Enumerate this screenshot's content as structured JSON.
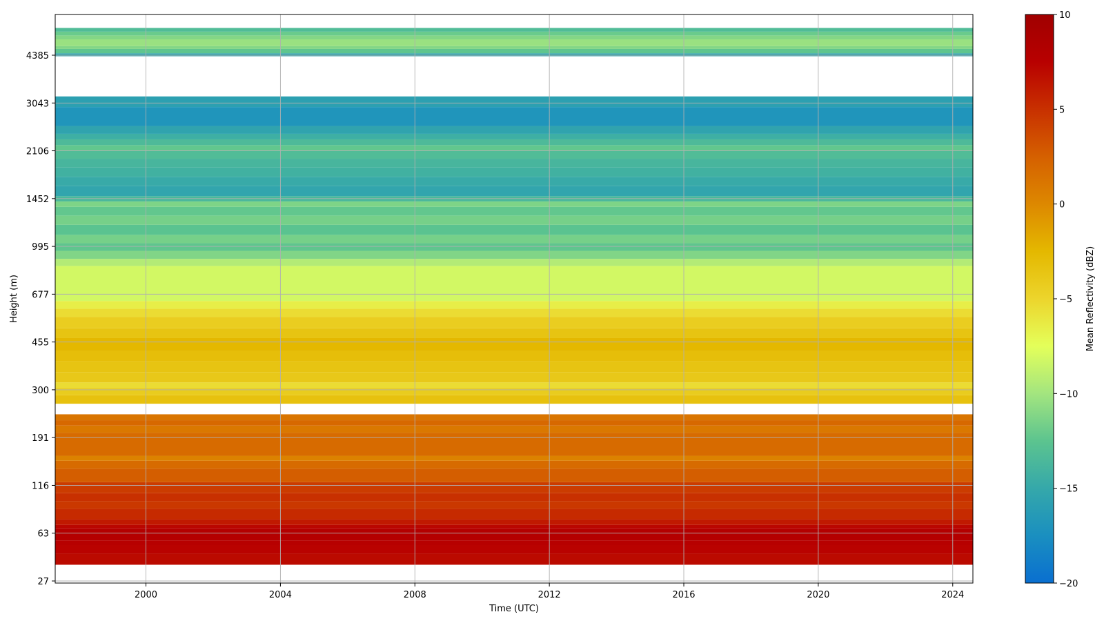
{
  "chart_data": {
    "type": "heatmap",
    "title": "",
    "xlabel": "Time (UTC)",
    "ylabel": "Height (m)",
    "x_range": [
      1997.3,
      2024.6
    ],
    "x_ticks": [
      "2000",
      "2004",
      "2008",
      "2012",
      "2016",
      "2020",
      "2024"
    ],
    "y_ticks": [
      "27",
      "63",
      "116",
      "191",
      "300",
      "455",
      "677",
      "995",
      "1452",
      "2106",
      "3043",
      "4385"
    ],
    "grid": true,
    "colorbar": {
      "label": "Mean Reflectivity (dBZ)",
      "range": [
        -20,
        10
      ],
      "ticks": [
        "10",
        "5",
        "0",
        "−5",
        "−10",
        "−15",
        "−20"
      ],
      "stops": [
        {
          "value": -20,
          "color": "#0a6fd0"
        },
        {
          "value": -17.5,
          "color": "#1a8fc0"
        },
        {
          "value": -15,
          "color": "#35a8aa"
        },
        {
          "value": -12.5,
          "color": "#5cc48f"
        },
        {
          "value": -10,
          "color": "#a3e57f"
        },
        {
          "value": -7.5,
          "color": "#e4ff5a"
        },
        {
          "value": -5,
          "color": "#ecd52c"
        },
        {
          "value": -2.5,
          "color": "#e4b800"
        },
        {
          "value": 0,
          "color": "#dd8800"
        },
        {
          "value": 2.5,
          "color": "#d56000"
        },
        {
          "value": 5,
          "color": "#c83000"
        },
        {
          "value": 7.5,
          "color": "#b80000"
        },
        {
          "value": 10,
          "color": "#a00000"
        }
      ]
    },
    "rows": [
      {
        "height_range": [
          36,
          44
        ],
        "dbz": 7.0
      },
      {
        "height_range": [
          44,
          51
        ],
        "dbz": 7.4
      },
      {
        "height_range": [
          51,
          55
        ],
        "dbz": 7.6
      },
      {
        "height_range": [
          55,
          67
        ],
        "dbz": 7.9
      },
      {
        "height_range": [
          67,
          70
        ],
        "dbz": 7.2
      },
      {
        "height_range": [
          70,
          75
        ],
        "dbz": 6.2
      },
      {
        "height_range": [
          75,
          86
        ],
        "dbz": 5.3
      },
      {
        "height_range": [
          86,
          95
        ],
        "dbz": 4.6
      },
      {
        "height_range": [
          95,
          105
        ],
        "dbz": 5.0
      },
      {
        "height_range": [
          105,
          120
        ],
        "dbz": 4.4
      },
      {
        "height_range": [
          120,
          138
        ],
        "dbz": 2.6
      },
      {
        "height_range": [
          138,
          150
        ],
        "dbz": 1.8
      },
      {
        "height_range": [
          150,
          158
        ],
        "dbz": 0.4
      },
      {
        "height_range": [
          158,
          200
        ],
        "dbz": 1.8
      },
      {
        "height_range": [
          200,
          214
        ],
        "dbz": 1.0
      },
      {
        "height_range": [
          214,
          225
        ],
        "dbz": 2.0
      },
      {
        "height_range": [
          225,
          238
        ],
        "dbz": 1.2
      },
      {
        "height_range": [
          263,
          285
        ],
        "dbz": -3.3
      },
      {
        "height_range": [
          285,
          305
        ],
        "dbz": -4.2
      },
      {
        "height_range": [
          305,
          320
        ],
        "dbz": -5.4
      },
      {
        "height_range": [
          320,
          350
        ],
        "dbz": -3.9
      },
      {
        "height_range": [
          350,
          385
        ],
        "dbz": -3.5
      },
      {
        "height_range": [
          385,
          420
        ],
        "dbz": -3.0
      },
      {
        "height_range": [
          420,
          470
        ],
        "dbz": -2.5
      },
      {
        "height_range": [
          470,
          510
        ],
        "dbz": -3.5
      },
      {
        "height_range": [
          510,
          560
        ],
        "dbz": -4.3
      },
      {
        "height_range": [
          560,
          600
        ],
        "dbz": -5.4
      },
      {
        "height_range": [
          600,
          640
        ],
        "dbz": -6.5
      },
      {
        "height_range": [
          640,
          850
        ],
        "dbz": -8.2
      },
      {
        "height_range": [
          850,
          900
        ],
        "dbz": -9.4
      },
      {
        "height_range": [
          900,
          960
        ],
        "dbz": -11.2
      },
      {
        "height_range": [
          960,
          1020
        ],
        "dbz": -12.4
      },
      {
        "height_range": [
          1020,
          1090
        ],
        "dbz": -11.6
      },
      {
        "height_range": [
          1090,
          1180
        ],
        "dbz": -12.6
      },
      {
        "height_range": [
          1180,
          1270
        ],
        "dbz": -11.6
      },
      {
        "height_range": [
          1270,
          1360
        ],
        "dbz": -12.3
      },
      {
        "height_range": [
          1360,
          1420
        ],
        "dbz": -11.3
      },
      {
        "height_range": [
          1420,
          1480
        ],
        "dbz": -13.6
      },
      {
        "height_range": [
          1480,
          1600
        ],
        "dbz": -15.3
      },
      {
        "height_range": [
          1600,
          1720
        ],
        "dbz": -14.8
      },
      {
        "height_range": [
          1720,
          1850
        ],
        "dbz": -14.2
      },
      {
        "height_range": [
          1850,
          1980
        ],
        "dbz": -13.8
      },
      {
        "height_range": [
          1980,
          2110
        ],
        "dbz": -13.2
      },
      {
        "height_range": [
          2110,
          2200
        ],
        "dbz": -12.3
      },
      {
        "height_range": [
          2200,
          2300
        ],
        "dbz": -13.4
      },
      {
        "height_range": [
          2300,
          2400
        ],
        "dbz": -14.4
      },
      {
        "height_range": [
          2400,
          2550
        ],
        "dbz": -15.5
      },
      {
        "height_range": [
          2550,
          2950
        ],
        "dbz": -16.9
      },
      {
        "height_range": [
          2950,
          3200
        ],
        "dbz": -15.8
      },
      {
        "height_range": [
          4350,
          4450
        ],
        "dbz": -15.4
      },
      {
        "height_range": [
          4450,
          4600
        ],
        "dbz": -12.4
      },
      {
        "height_range": [
          4600,
          4700
        ],
        "dbz": -11.1
      },
      {
        "height_range": [
          4700,
          4950
        ],
        "dbz": -10.3
      },
      {
        "height_range": [
          4950,
          5100
        ],
        "dbz": -11.1
      },
      {
        "height_range": [
          5100,
          5250
        ],
        "dbz": -12.0
      },
      {
        "height_range": [
          5250,
          5400
        ],
        "dbz": -13.2
      }
    ]
  }
}
